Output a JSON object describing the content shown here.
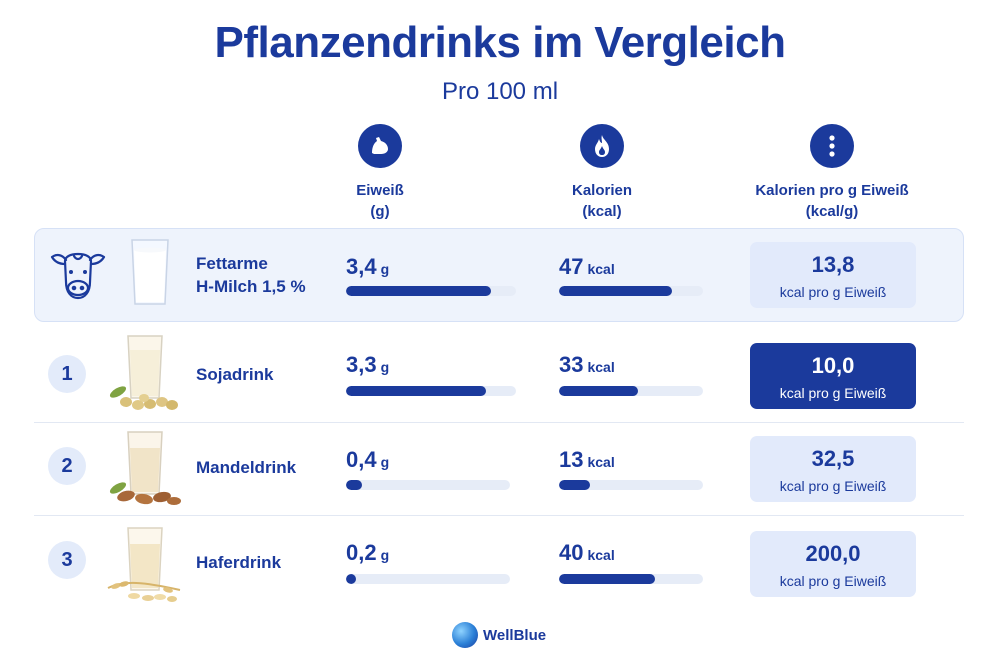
{
  "title": "Pflanzendrinks im Vergleich",
  "subtitle": "Pro 100 ml",
  "columns": [
    {
      "line1": "Eiweiß",
      "line2": "(g)",
      "icon": "flexed-arm-icon"
    },
    {
      "line1": "Kalorien",
      "line2": "(kcal)",
      "icon": "flame-icon"
    },
    {
      "line1": "Kalorien pro g Eiweiß",
      "line2": "(kcal/g)",
      "icon": "dots-icon"
    }
  ],
  "ratio_unit": "kcal pro g Eiweiß",
  "reference": {
    "name_line1": "Fettarme",
    "name_line2": "H-Milch 1,5 %",
    "protein": "3,4",
    "protein_unit": "g",
    "calories": "47",
    "calories_unit": "kcal",
    "ratio": "13,8",
    "icon": "cow-icon"
  },
  "drinks": [
    {
      "rank": "1",
      "name": "Sojadrink",
      "protein": "3,3",
      "protein_unit": "g",
      "calories": "33",
      "calories_unit": "kcal",
      "ratio": "10,0",
      "highlight": true
    },
    {
      "rank": "2",
      "name": "Mandeldrink",
      "protein": "0,4",
      "protein_unit": "g",
      "calories": "13",
      "calories_unit": "kcal",
      "ratio": "32,5",
      "highlight": false
    },
    {
      "rank": "3",
      "name": "Haferdrink",
      "protein": "0,2",
      "protein_unit": "g",
      "calories": "40",
      "calories_unit": "kcal",
      "ratio": "200,0",
      "highlight": false
    }
  ],
  "brand": "WellBlue",
  "colors": {
    "accent": "#1b3a9c",
    "track": "#e6ecf7",
    "box": "#e2eafb",
    "row_highlight": "#eef3fc"
  },
  "chart_data": {
    "type": "bar",
    "categories": [
      "Fettarme H-Milch 1,5 %",
      "Sojadrink",
      "Mandeldrink",
      "Haferdrink"
    ],
    "series": [
      {
        "name": "Eiweiß",
        "values": [
          3.4,
          3.3,
          0.4,
          0.2
        ]
      },
      {
        "name": "Kalorien",
        "values": [
          47,
          33,
          13,
          40
        ]
      },
      {
        "name": "Kalorien pro g Eiweiß",
        "values": [
          13.8,
          10.0,
          32.5,
          200.0
        ]
      }
    ],
    "protein_scale_max": 4.0,
    "calories_scale_max": 60
  }
}
